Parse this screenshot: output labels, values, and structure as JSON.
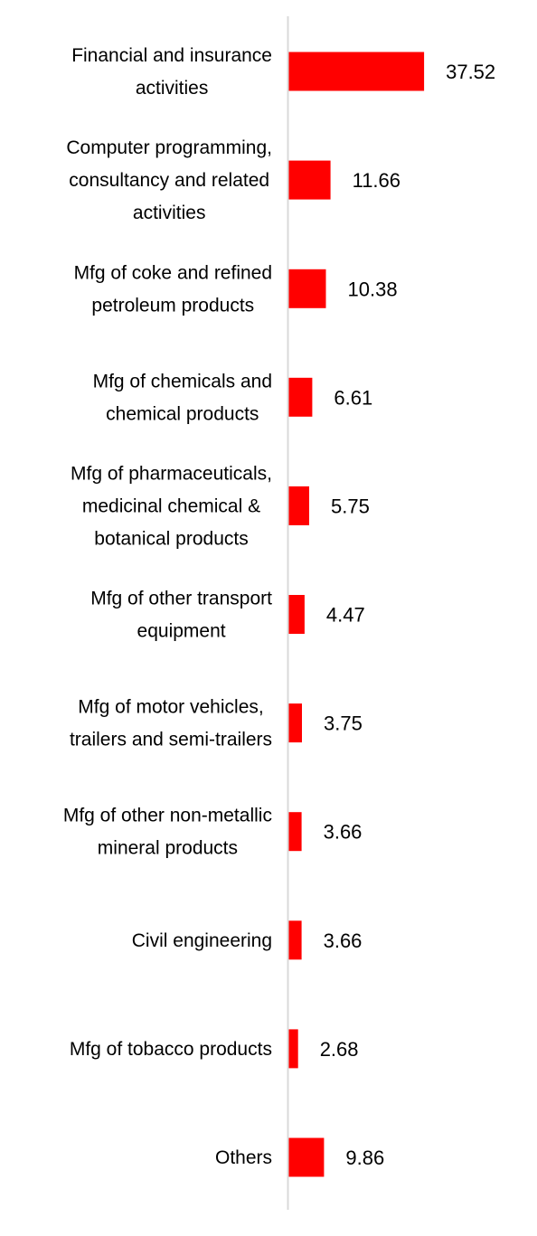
{
  "chart_data": {
    "type": "bar",
    "orientation": "horizontal",
    "categories": [
      [
        "Financial and insurance",
        "activities"
      ],
      [
        "Computer programming,",
        "consultancy and related",
        "activities"
      ],
      [
        "Mfg of coke and refined",
        "petroleum products"
      ],
      [
        "Mfg of chemicals and",
        "chemical products"
      ],
      [
        "Mfg of pharmaceuticals,",
        "medicinal chemical &",
        "botanical products"
      ],
      [
        "Mfg of other transport",
        "equipment"
      ],
      [
        "Mfg of motor vehicles,",
        "trailers and semi-trailers"
      ],
      [
        "Mfg of other non-metallic",
        "mineral products"
      ],
      [
        "Civil engineering"
      ],
      [
        "Mfg of tobacco products"
      ],
      [
        "Others"
      ]
    ],
    "values": [
      37.52,
      11.66,
      10.38,
      6.61,
      5.75,
      4.47,
      3.75,
      3.66,
      3.66,
      2.68,
      9.86
    ],
    "value_labels": [
      "37.52",
      "11.66",
      "10.38",
      "6.61",
      "5.75",
      "4.47",
      "3.75",
      "3.66",
      "3.66",
      "2.68",
      "9.86"
    ],
    "xlim": [
      0,
      40
    ],
    "grid": false,
    "legend": "none",
    "bar_color": "#ff0000",
    "axis_color": "#d9d9d9"
  }
}
